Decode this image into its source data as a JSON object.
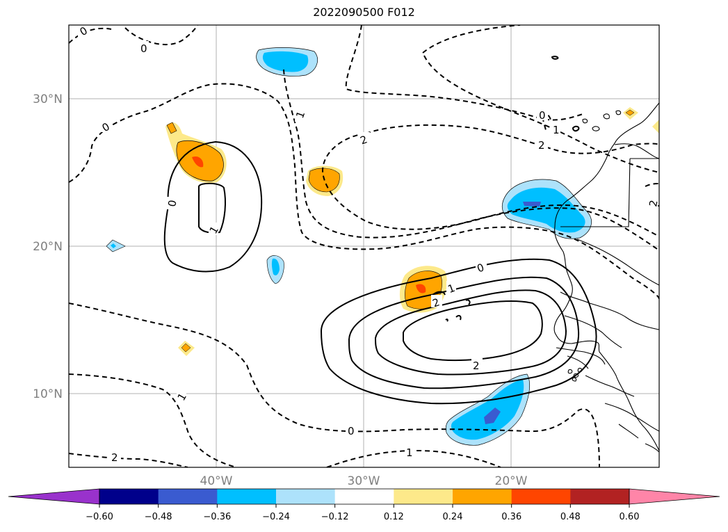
{
  "title": "2022090500 F012",
  "map": {
    "lat_labels": [
      "30°N",
      "20°N",
      "10°N"
    ],
    "lon_labels": [
      "40°W",
      "30°W",
      "20°W"
    ],
    "extent": {
      "lon_min": -50,
      "lon_max": -10,
      "lat_min": 5,
      "lat_max": 35
    },
    "grid": true
  },
  "contour_labels": [
    {
      "text": "0"
    },
    {
      "text": "0"
    },
    {
      "text": "0"
    },
    {
      "text": "1"
    },
    {
      "text": "2"
    },
    {
      "text": "0"
    },
    {
      "text": "1"
    },
    {
      "text": "0"
    },
    {
      "text": "1"
    },
    {
      "text": "2"
    },
    {
      "text": "0"
    },
    {
      "text": "1"
    },
    {
      "text": "2"
    },
    {
      "text": "2"
    },
    {
      "text": "0"
    },
    {
      "text": "1"
    },
    {
      "text": "2"
    },
    {
      "text": "1"
    },
    {
      "text": "2"
    }
  ],
  "colorbar": {
    "ticks": [
      "−0.60",
      "−0.48",
      "−0.36",
      "−0.24",
      "−0.12",
      "0.12",
      "0.24",
      "0.36",
      "0.48",
      "0.60"
    ],
    "colors": [
      "#9932cc",
      "#00008b",
      "#3a5bd0",
      "#00bfff",
      "#ade2fb",
      "#ffffff",
      "#fde98a",
      "#ffa500",
      "#ff4500",
      "#b22222",
      "#ff85a8"
    ],
    "extend": "both"
  }
}
